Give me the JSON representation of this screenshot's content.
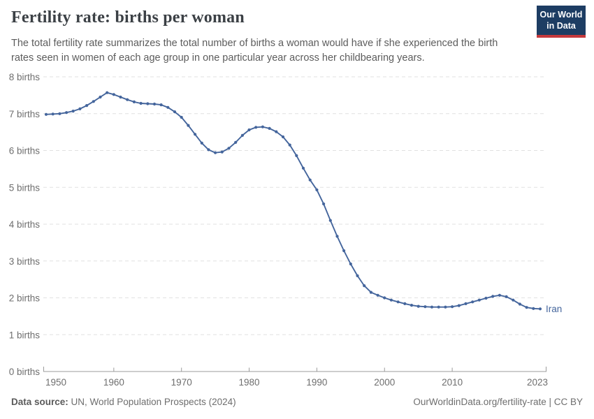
{
  "header": {
    "title": "Fertility rate: births per woman",
    "subtitle_lines": [
      "The total fertility rate summarizes the total number of births a woman would have if she experienced the birth",
      "rates seen in women of each age group in one particular year across her childbearing years."
    ]
  },
  "logo": {
    "line1": "Our World",
    "line2": "in Data",
    "bg_color": "#1d3d63",
    "accent_color": "#c5393c"
  },
  "footer": {
    "source_label": "Data source:",
    "source_text": " UN, World Population Prospects (2024)",
    "credit": "OurWorldinData.org/fertility-rate | CC BY"
  },
  "chart_data": {
    "type": "line",
    "title": "Fertility rate: births per woman",
    "entity": "Iran",
    "xlabel": "",
    "ylabel": "births",
    "xlim": [
      1950,
      2023
    ],
    "ylim": [
      0,
      8
    ],
    "grid": "horizontal-dashed",
    "legend_position": "line-end-label",
    "marker": "circle",
    "line_color": "#44659c",
    "grid_color": "#e1e1e1",
    "axis_color": "#9b9b9b",
    "x_ticks": [
      1950,
      1960,
      1970,
      1980,
      1990,
      2000,
      2010,
      2023
    ],
    "y_ticks": [
      0,
      1,
      2,
      3,
      4,
      5,
      6,
      7,
      8
    ],
    "y_tick_label_suffix": " births",
    "x": [
      1950,
      1951,
      1952,
      1953,
      1954,
      1955,
      1956,
      1957,
      1958,
      1959,
      1960,
      1961,
      1962,
      1963,
      1964,
      1965,
      1966,
      1967,
      1968,
      1969,
      1970,
      1971,
      1972,
      1973,
      1974,
      1975,
      1976,
      1977,
      1978,
      1979,
      1980,
      1981,
      1982,
      1983,
      1984,
      1985,
      1986,
      1987,
      1988,
      1989,
      1990,
      1991,
      1992,
      1993,
      1994,
      1995,
      1996,
      1997,
      1998,
      1999,
      2000,
      2001,
      2002,
      2003,
      2004,
      2005,
      2006,
      2007,
      2008,
      2009,
      2010,
      2011,
      2012,
      2013,
      2014,
      2015,
      2016,
      2017,
      2018,
      2019,
      2020,
      2021,
      2022,
      2023
    ],
    "series": [
      {
        "name": "Iran",
        "color": "#44659c",
        "values": [
          6.98,
          6.99,
          7.0,
          7.03,
          7.07,
          7.13,
          7.22,
          7.33,
          7.45,
          7.57,
          7.52,
          7.45,
          7.38,
          7.32,
          7.28,
          7.27,
          7.26,
          7.24,
          7.17,
          7.05,
          6.9,
          6.68,
          6.44,
          6.2,
          6.02,
          5.94,
          5.96,
          6.06,
          6.22,
          6.41,
          6.56,
          6.63,
          6.64,
          6.6,
          6.51,
          6.37,
          6.15,
          5.86,
          5.52,
          5.2,
          4.93,
          4.55,
          4.1,
          3.67,
          3.28,
          2.92,
          2.6,
          2.33,
          2.15,
          2.07,
          2.0,
          1.94,
          1.89,
          1.84,
          1.8,
          1.77,
          1.76,
          1.75,
          1.75,
          1.75,
          1.76,
          1.79,
          1.84,
          1.89,
          1.94,
          1.99,
          2.04,
          2.07,
          2.03,
          1.94,
          1.83,
          1.74,
          1.71,
          1.7
        ]
      }
    ]
  }
}
